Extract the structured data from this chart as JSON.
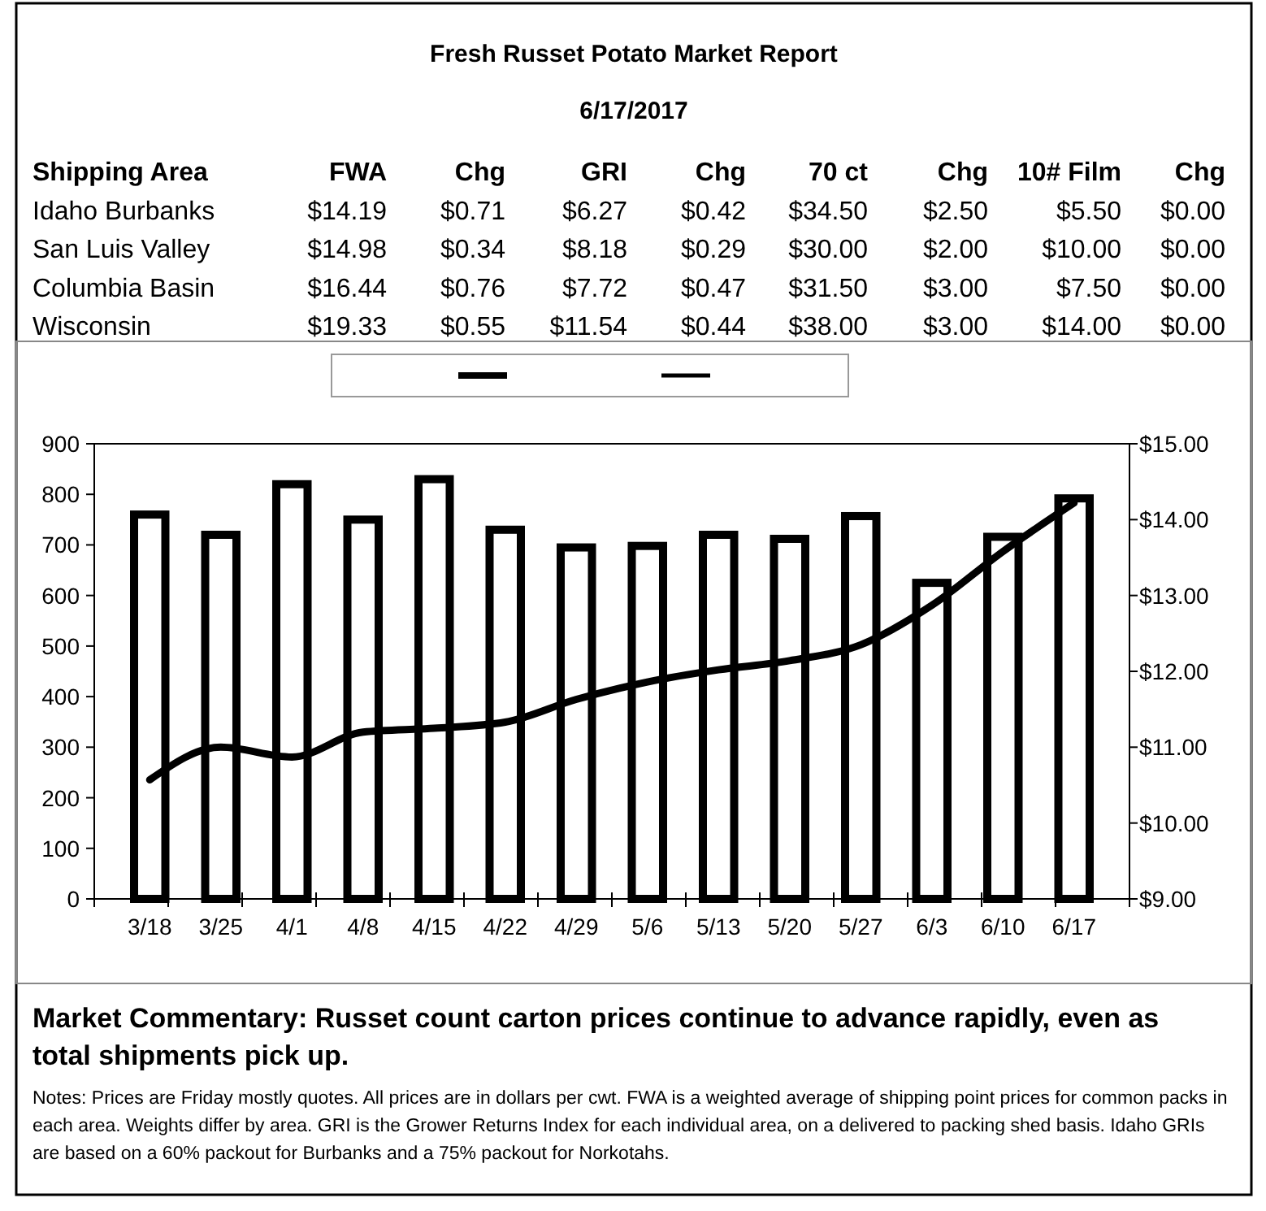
{
  "chart_data": [
    {
      "type": "other",
      "title": "Fresh Russet Potato Market Report",
      "subtitle": "6/17/2017",
      "annotations": [
        "Shipping Area",
        "FWA",
        "Chg",
        "GRI",
        "Chg",
        "70 ct",
        "Chg",
        "10# Film",
        "Chg",
        "Idaho Burbanks",
        "$14.19",
        "$0.71",
        "$6.27",
        "$0.42",
        "$34.50",
        "$2.50",
        "$5.50",
        "$0.00",
        "San Luis Valley",
        "$14.98",
        "$0.34",
        "$8.18",
        "$0.29",
        "$30.00",
        "$2.00",
        "$10.00",
        "$0.00",
        "Columbia Basin",
        "$16.44",
        "$0.76",
        "$7.72",
        "$0.47",
        "$31.50",
        "$3.00",
        "$7.50",
        "$0.00",
        "Wisconsin",
        "$19.33",
        "$0.55",
        "$11.54",
        "$0.44",
        "$38.00",
        "$3.00",
        "$14.00",
        "$0.00"
      ]
    },
    {
      "type": "bar",
      "categories": [
        "3/18",
        "3/25",
        "4/1",
        "4/8",
        "4/15",
        "4/22",
        "4/29",
        "5/6",
        "5/13",
        "5/20",
        "5/27",
        "6/3",
        "6/10",
        "6/17"
      ],
      "series": [
        {
          "type": "bar",
          "color": "#000000",
          "values": [
            760,
            720,
            820,
            750,
            830,
            730,
            695,
            698,
            720,
            712,
            757,
            625,
            716,
            792
          ]
        },
        {
          "type": "line",
          "axis": "y2",
          "color": "#000000",
          "values": [
            10.57,
            11.0,
            10.87,
            11.2,
            11.25,
            11.33,
            11.63,
            11.86,
            12.02,
            12.14,
            12.35,
            12.87,
            13.58,
            14.22
          ]
        }
      ],
      "ylim": [
        0,
        900
      ],
      "yticks": [
        0,
        100,
        200,
        300,
        400,
        500,
        600,
        700,
        800,
        900
      ],
      "y2lim": [
        9,
        15
      ],
      "y2ticks": [
        {
          "value": 9,
          "label": "$9.00"
        },
        {
          "value": 10,
          "label": "$10.00"
        },
        {
          "value": 11,
          "label": "$11.00"
        },
        {
          "value": 12,
          "label": "$12.00"
        },
        {
          "value": 13,
          "label": "$13.00"
        },
        {
          "value": 14,
          "label": "$14.00"
        },
        {
          "value": 15,
          "label": "$15.00"
        }
      ],
      "grid": false,
      "annotations": [
        "Market Commentary: Russet count carton prices continue to advance rapidly, even as total shipments pick up.",
        "Notes: Prices are Friday mostly quotes. All prices are in dollars per cwt. FWA is a weighted average of shipping point prices for  common packs in each area. Weights differ by area. GRI is the Grower Returns Index for each individual area, on a delivered to packing shed basis. Idaho GRIs are based on a 60% packout for Burbanks and a 75% packout for Norkotahs."
      ]
    }
  ]
}
